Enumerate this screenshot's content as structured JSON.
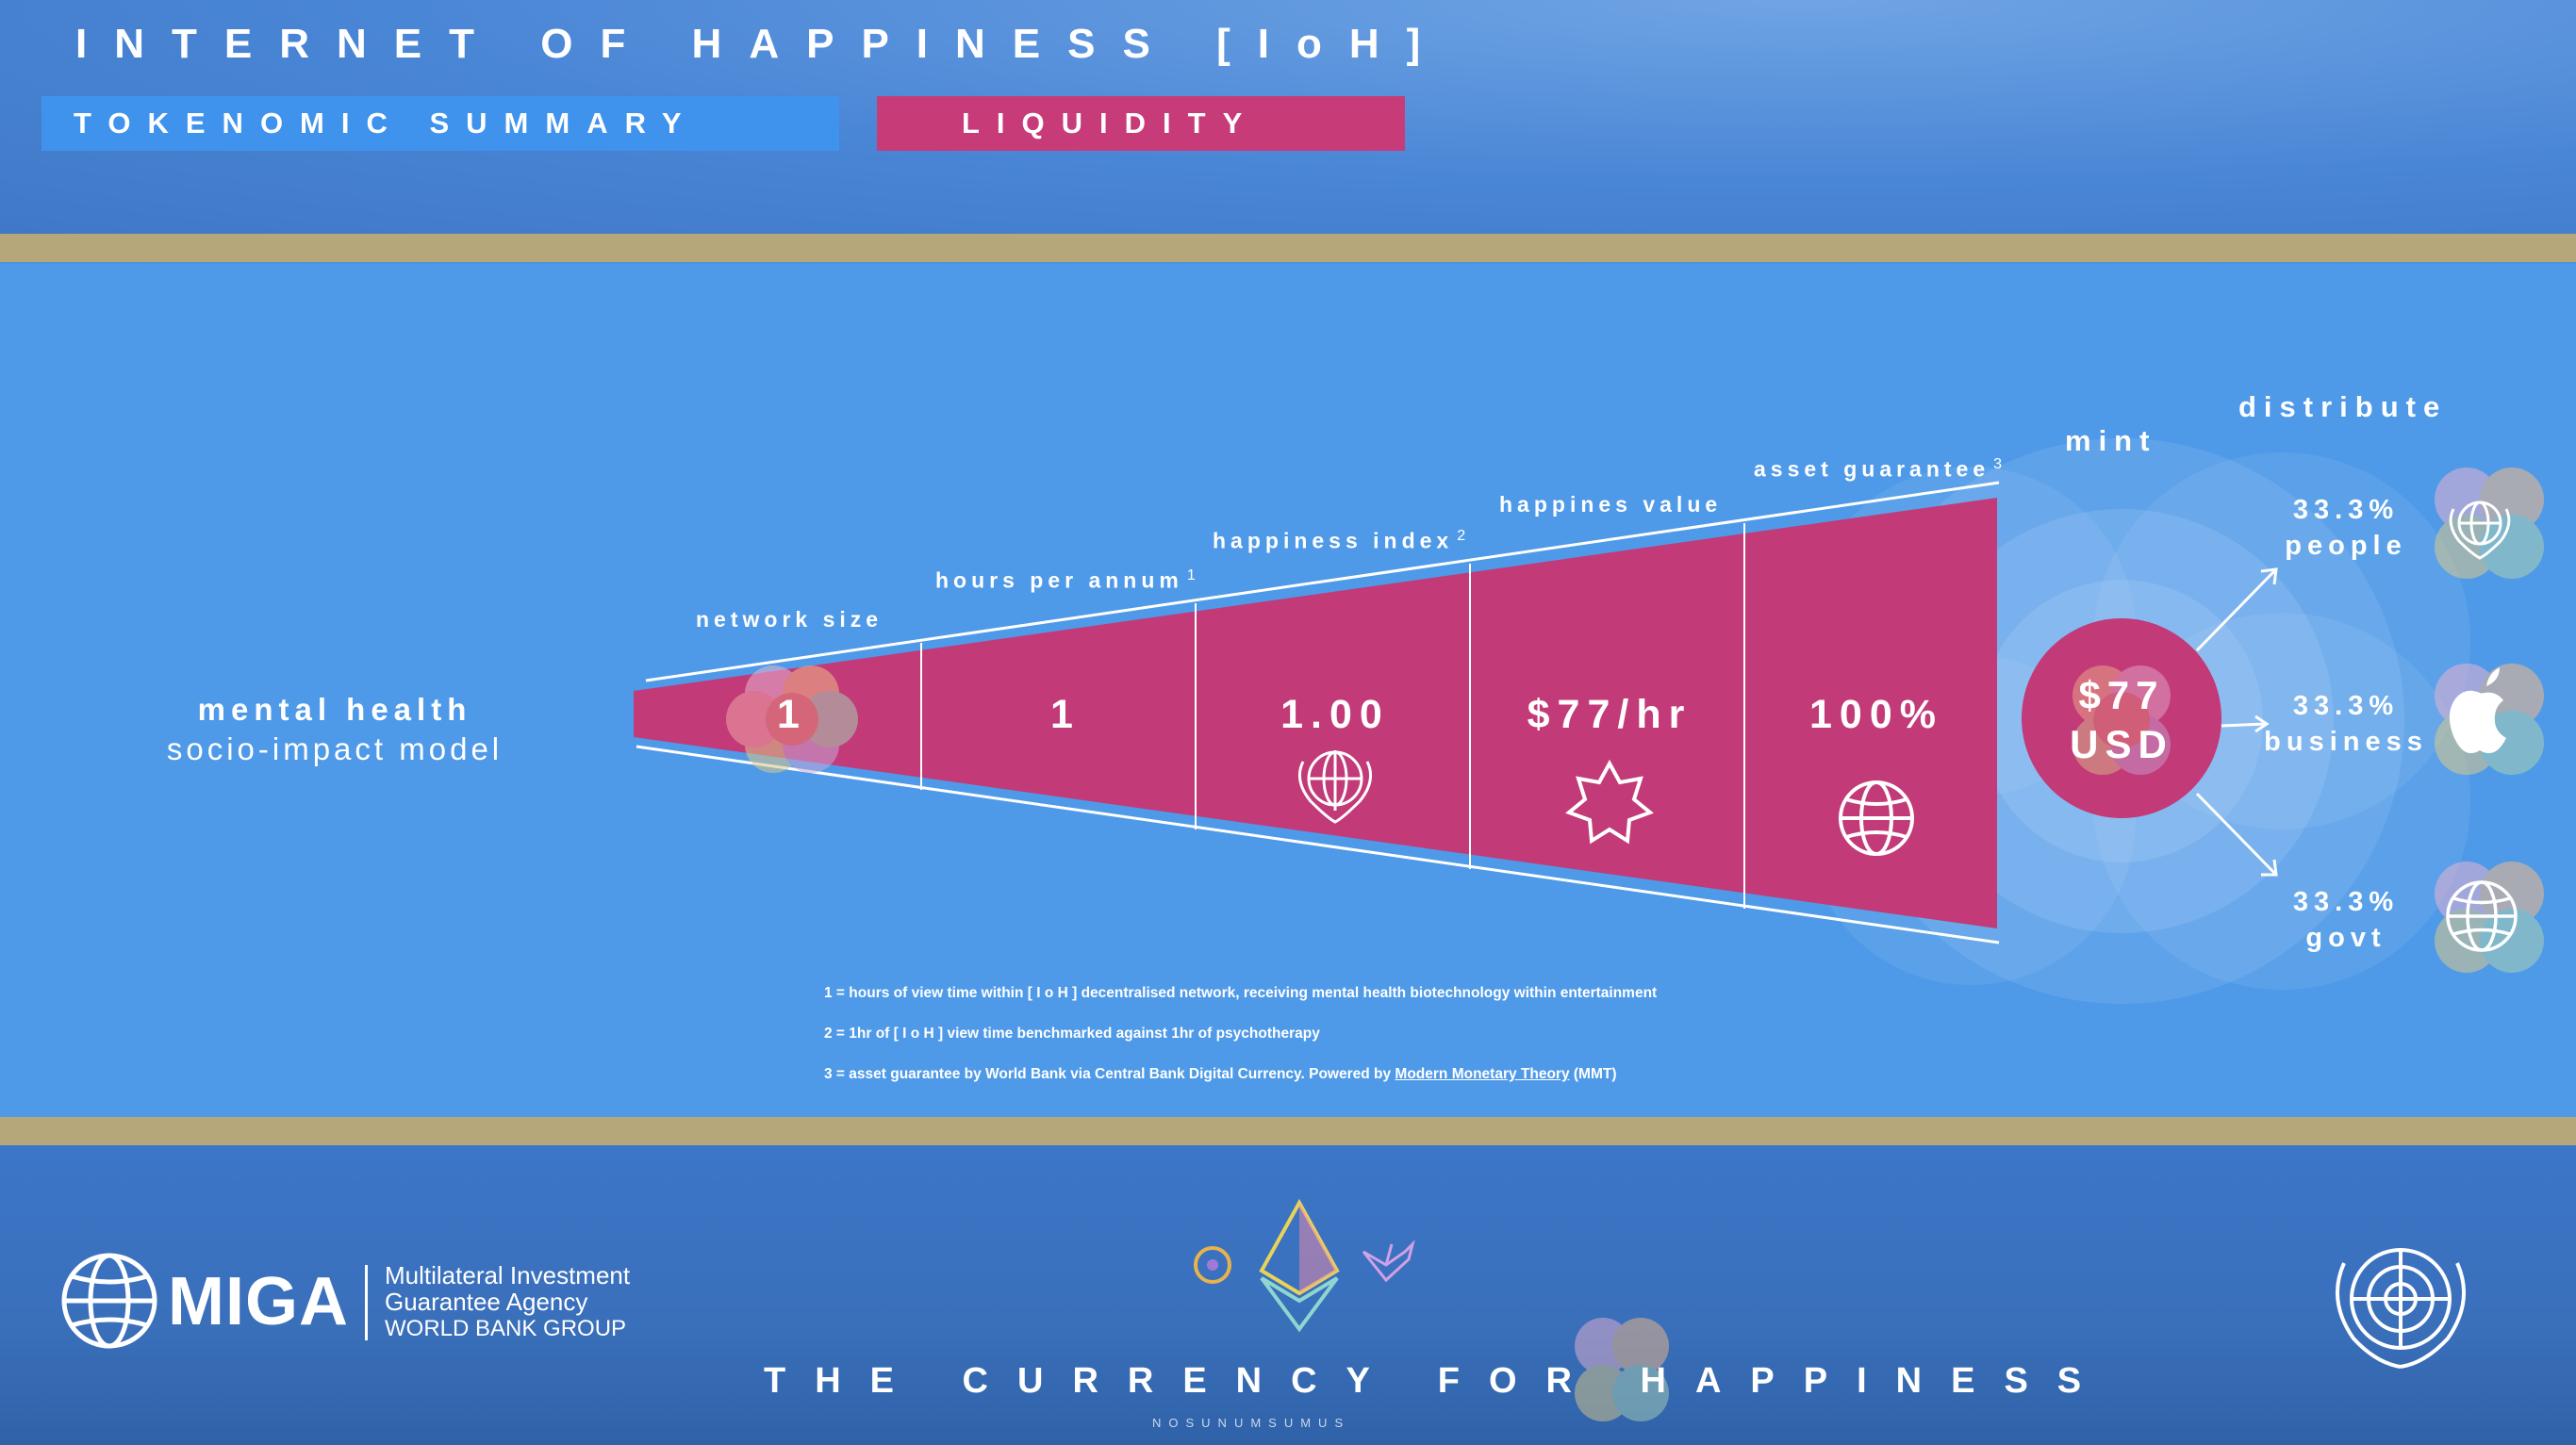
{
  "header": {
    "title": "INTERNET OF HAPPINESS [IoH]",
    "tab_summary": "TOKENOMIC SUMMARY",
    "tab_liquidity": "LIQUIDITY"
  },
  "model": {
    "title": "mental health",
    "subtitle": "socio-impact model"
  },
  "funnel": {
    "segments": [
      {
        "label": "network size",
        "sup": "",
        "value": "1",
        "icon": "happiness-flower-icon"
      },
      {
        "label": "hours per annum",
        "sup": "1",
        "value": "1",
        "icon": ""
      },
      {
        "label": "happiness index",
        "sup": "2",
        "value": "1.00",
        "icon": "who-emblem-icon"
      },
      {
        "label": "happines value",
        "sup": "",
        "value": "$77/hr",
        "icon": "star-badge-icon"
      },
      {
        "label": "asset guarantee",
        "sup": "3",
        "value": "100%",
        "icon": "globe-icon"
      }
    ]
  },
  "mint": {
    "label": "mint",
    "amount": "$77",
    "currency": "USD"
  },
  "distribute": {
    "label": "distribute",
    "shares": [
      {
        "percent": "33.3%",
        "recipient": "people",
        "icon": "who-emblem-icon"
      },
      {
        "percent": "33.3%",
        "recipient": "business",
        "icon": "apple-logo-icon"
      },
      {
        "percent": "33.3%",
        "recipient": "govt",
        "icon": "globe-icon"
      }
    ]
  },
  "notes": {
    "n1": "1 = hours of view time within [ I o H ] decentralised network, receiving mental health biotechnology within entertainment",
    "n2": "2 = 1hr of [ I o H ] view time benchmarked against 1hr of psychotherapy",
    "n3_prefix": "3 = asset guarantee by World Bank via Central Bank Digital Currency. Powered by ",
    "n3_link": "Modern Monetary Theory",
    "n3_suffix": " (MMT)"
  },
  "footer": {
    "miga_word": "MIGA",
    "miga_line1": "Multilateral Investment",
    "miga_line2": "Guarantee Agency",
    "miga_line3": "WORLD BANK GROUP",
    "tagline": "THE CURRENCY FOR HAPPINESS",
    "signature": "NOSUNUMSUMUS"
  },
  "colors": {
    "panel_blue": "#4f9ae8",
    "funnel_magenta": "#c23a78",
    "gold_band": "#b5a77a",
    "tag_blue": "#3f93ec",
    "tag_pink": "#c83b79"
  }
}
